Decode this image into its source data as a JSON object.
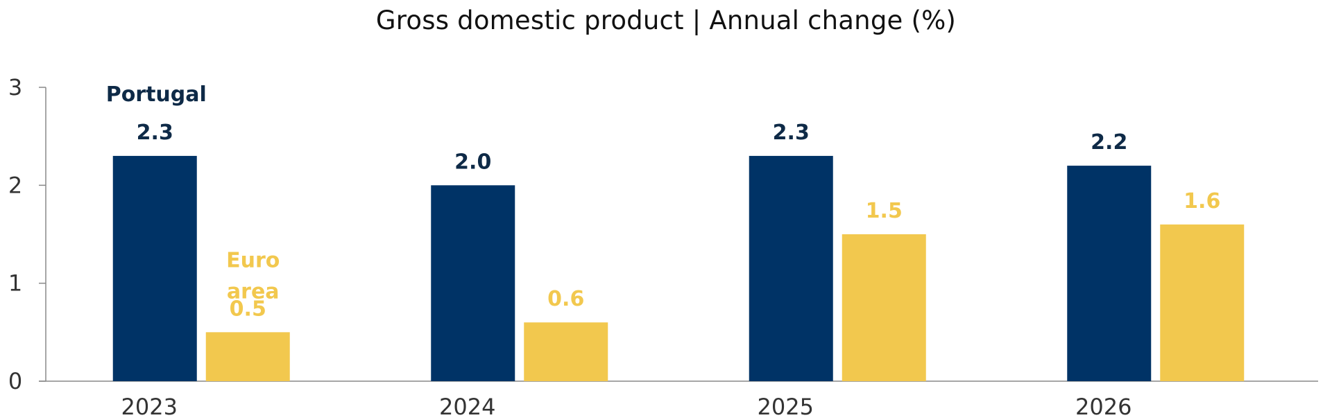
{
  "chart_data": {
    "type": "bar",
    "title": "Gross domestic product | Annual change (%)",
    "xlabel": "",
    "ylabel": "",
    "categories": [
      "2023",
      "2024",
      "2025",
      "2026"
    ],
    "ylim": [
      0,
      3
    ],
    "yticks": [
      "0",
      "1",
      "2",
      "3"
    ],
    "grid": false,
    "series": [
      {
        "name": "Portugal",
        "color": "#003366",
        "values": [
          2.3,
          2.0,
          2.3,
          2.2
        ],
        "labels": [
          "2.3",
          "2.0",
          "2.3",
          "2.2"
        ]
      },
      {
        "name": "Euro area",
        "name_lines": [
          "Euro",
          "area"
        ],
        "color": "#F2C84E",
        "values": [
          0.5,
          0.6,
          1.5,
          1.6
        ],
        "labels": [
          "0.5",
          "0.6",
          "1.5",
          "1.6"
        ]
      }
    ]
  }
}
